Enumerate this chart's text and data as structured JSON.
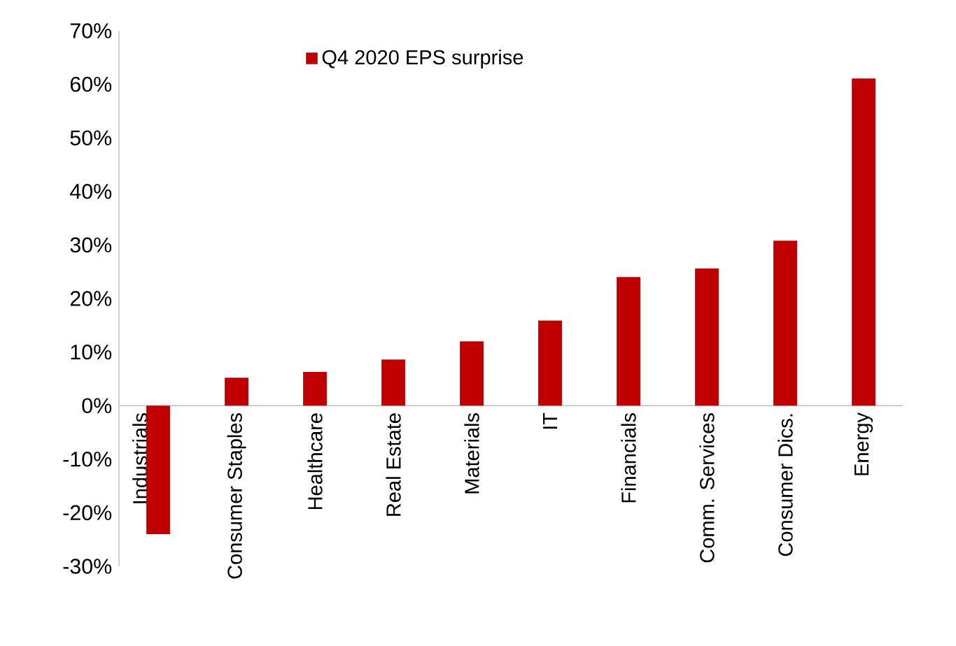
{
  "chart_data": {
    "type": "bar",
    "categories": [
      "Industrials",
      "Consumer Staples",
      "Healthcare",
      "Real Estate",
      "Materials",
      "IT",
      "Financials",
      "Comm. Services",
      "Consumer Dics.",
      "Energy"
    ],
    "series": [
      {
        "name": "Q4 2020 EPS surprise",
        "color": "#c00000",
        "values": [
          -24,
          5.2,
          6.3,
          8.6,
          12,
          15.9,
          24,
          25.6,
          30.8,
          61.1
        ]
      }
    ],
    "ylim": [
      -30,
      70
    ],
    "yticks": [
      {
        "value": -30,
        "label": "-30%"
      },
      {
        "value": -20,
        "label": "-20%"
      },
      {
        "value": -10,
        "label": "-10%"
      },
      {
        "value": 0,
        "label": "0%"
      },
      {
        "value": 10,
        "label": "10%"
      },
      {
        "value": 20,
        "label": "20%"
      },
      {
        "value": 30,
        "label": "30%"
      },
      {
        "value": 40,
        "label": "40%"
      },
      {
        "value": 50,
        "label": "50%"
      },
      {
        "value": 60,
        "label": "60%"
      },
      {
        "value": 70,
        "label": "70%"
      }
    ],
    "grid": false,
    "legend": "top"
  }
}
